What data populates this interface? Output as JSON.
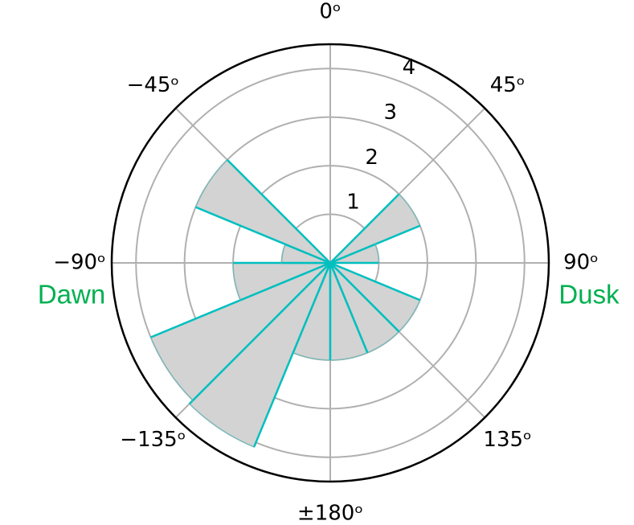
{
  "chart_data": {
    "type": "polar-histogram",
    "bins": [
      -180,
      -157.5,
      -135,
      -112.5,
      -90,
      -67.5,
      -45,
      -22.5,
      0,
      22.5,
      45,
      67.5,
      90,
      112.5,
      135,
      157.5,
      180
    ],
    "values": [
      2,
      4.1,
      4.0,
      2,
      1,
      3,
      0,
      0,
      0,
      0,
      2,
      1,
      0,
      2,
      2,
      2
    ],
    "color": "#d3d3d3",
    "edge_color": "#00bfbf",
    "xticks": [
      {
        "value": 0,
        "label": "0ᵒ"
      },
      {
        "value": 45,
        "label": "45ᵒ"
      },
      {
        "value": 90,
        "label": "90ᵒ"
      },
      {
        "value": 135,
        "label": "135ᵒ"
      },
      {
        "value": 180,
        "label": "±180ᵒ"
      },
      {
        "value": -135,
        "label": "−135ᵒ"
      },
      {
        "value": -90,
        "label": "−90ᵒ"
      },
      {
        "value": -45,
        "label": "−45ᵒ"
      }
    ],
    "ylim": [
      0,
      4.5
    ],
    "yticks": [
      1,
      2,
      3,
      4
    ],
    "grid": true,
    "annotations": [
      {
        "text": "Dawn",
        "angle": -90
      },
      {
        "text": "Dusk",
        "angle": 90
      }
    ]
  }
}
